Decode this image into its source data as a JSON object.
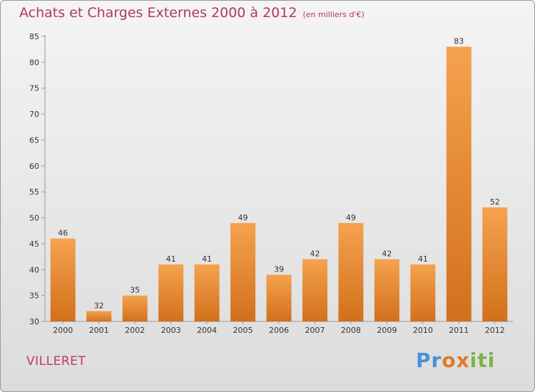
{
  "title": "Achats et Charges Externes 2000 à 2012",
  "subtitle": "(en milliers d'€)",
  "commune": "VILLERET",
  "logo": {
    "part1": "Pr",
    "part2": "ox",
    "part3": "iti"
  },
  "colors": {
    "bar_top": "#f5a24e",
    "bar_bottom": "#d2701c",
    "title": "#b03a5a"
  },
  "chart_data": {
    "type": "bar",
    "title": "Achats et Charges Externes 2000 à 2012",
    "subtitle": "(en milliers d'€)",
    "categories": [
      "2000",
      "2001",
      "2002",
      "2003",
      "2004",
      "2005",
      "2006",
      "2007",
      "2008",
      "2009",
      "2010",
      "2011",
      "2012"
    ],
    "values": [
      46,
      32,
      35,
      41,
      41,
      49,
      39,
      42,
      49,
      42,
      41,
      83,
      52
    ],
    "ylim": [
      30,
      85
    ],
    "yticks": [
      30,
      35,
      40,
      45,
      50,
      55,
      60,
      65,
      70,
      75,
      80,
      85
    ],
    "grid": false,
    "legend": "none"
  }
}
